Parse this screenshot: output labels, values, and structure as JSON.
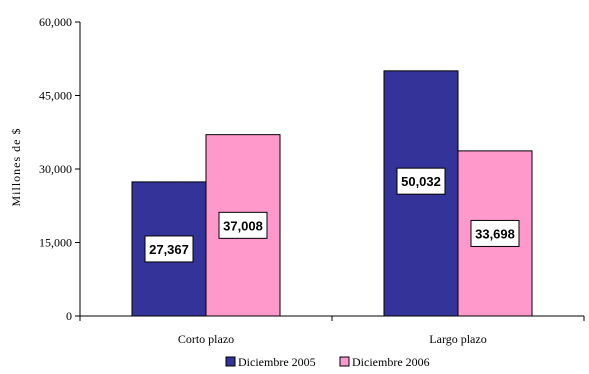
{
  "chart_data": {
    "type": "bar",
    "categories": [
      "Corto plazo",
      "Largo plazo"
    ],
    "series": [
      {
        "name": "Diciembre 2005",
        "values": [
          27367,
          50032
        ],
        "data_labels": [
          "27,367",
          "50,032"
        ],
        "color": "#333399"
      },
      {
        "name": "Diciembre 2006",
        "values": [
          37008,
          33698
        ],
        "data_labels": [
          "37,008",
          "33,698"
        ],
        "color": "#FF99CC"
      }
    ],
    "ylabel": "Millones de $",
    "ylim": [
      0,
      60000
    ],
    "yticks": [
      0,
      15000,
      30000,
      45000,
      60000
    ],
    "ytick_labels": [
      "0",
      "15,000",
      "30,000",
      "45,000",
      "60,000"
    ],
    "grid": false,
    "legend_position": "bottom"
  }
}
